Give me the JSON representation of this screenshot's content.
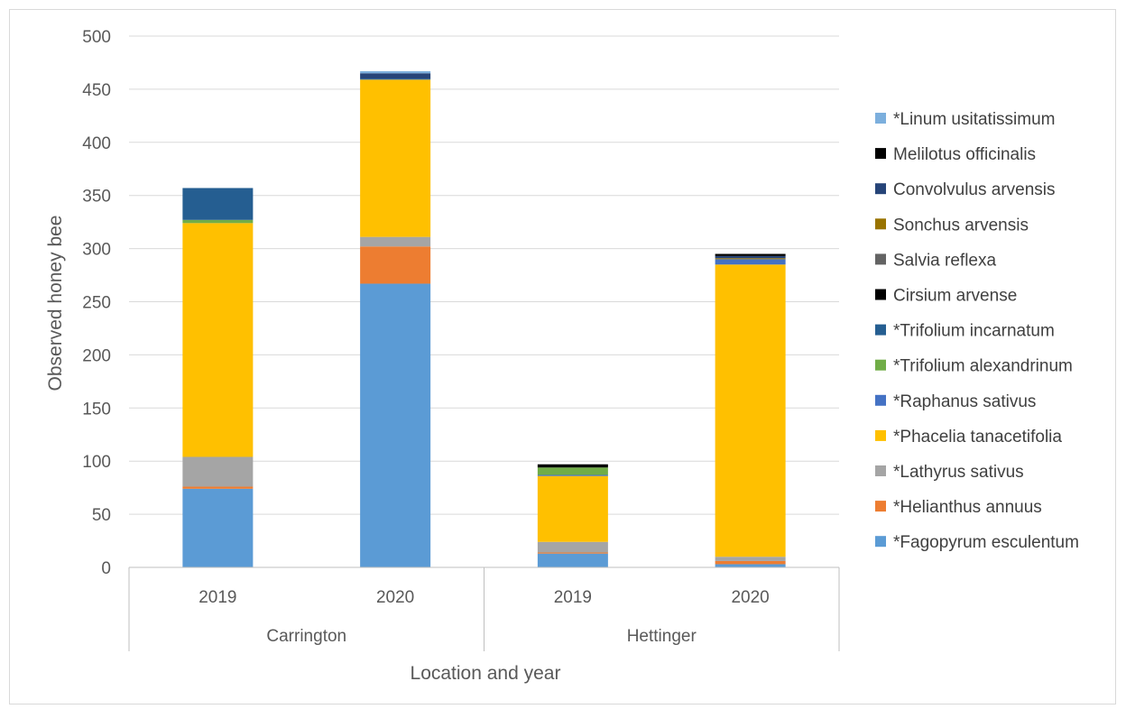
{
  "chart_data": {
    "type": "bar",
    "stacked": true,
    "title": "",
    "xlabel": "Location and year",
    "ylabel": "Observed honey bee",
    "ylim": [
      0,
      500
    ],
    "yticks": [
      0,
      50,
      100,
      150,
      200,
      250,
      300,
      350,
      400,
      450,
      500
    ],
    "grid": true,
    "legend_position": "right",
    "groups": [
      {
        "name": "Carrington",
        "years": [
          "2019",
          "2020"
        ]
      },
      {
        "name": "Hettinger",
        "years": [
          "2019",
          "2020"
        ]
      }
    ],
    "categories": [
      "Carrington 2019",
      "Carrington 2020",
      "Hettinger 2019",
      "Hettinger 2020"
    ],
    "series": [
      {
        "name": "*Fagopyrum esculentum",
        "color": "#5b9bd5",
        "values": [
          74,
          267,
          13,
          3
        ]
      },
      {
        "name": "*Helianthus annuus",
        "color": "#ed7d31",
        "values": [
          2,
          35,
          1,
          3
        ]
      },
      {
        "name": "*Lathyrus sativus",
        "color": "#a5a5a5",
        "values": [
          28,
          9,
          10,
          4
        ]
      },
      {
        "name": "*Phacelia tanacetifolia",
        "color": "#ffc000",
        "values": [
          220,
          148,
          62,
          275
        ]
      },
      {
        "name": "*Raphanus sativus",
        "color": "#4472c4",
        "values": [
          0,
          0,
          1,
          5
        ]
      },
      {
        "name": "*Trifolium alexandrinum",
        "color": "#70ad47",
        "values": [
          3,
          0,
          7,
          0
        ]
      },
      {
        "name": "*Trifolium incarnatum",
        "color": "#255e91",
        "values": [
          30,
          1,
          0,
          0
        ]
      },
      {
        "name": "Cirsium arvense",
        "color": "#000000",
        "values": [
          0,
          0,
          3,
          0
        ]
      },
      {
        "name": "Salvia reflexa",
        "color": "#636363",
        "values": [
          0,
          0,
          0,
          0
        ]
      },
      {
        "name": "Sonchus arvensis",
        "color": "#997300",
        "values": [
          0,
          0,
          0,
          1
        ]
      },
      {
        "name": "Convolvulus arvensis",
        "color": "#264478",
        "values": [
          0,
          5,
          0,
          2
        ]
      },
      {
        "name": "Melilotus officinalis",
        "color": "#000000",
        "values": [
          0,
          0,
          0,
          2
        ]
      },
      {
        "name": "*Linum usitatissimum",
        "color": "#7cafdd",
        "values": [
          0,
          2,
          0,
          0
        ]
      }
    ]
  }
}
